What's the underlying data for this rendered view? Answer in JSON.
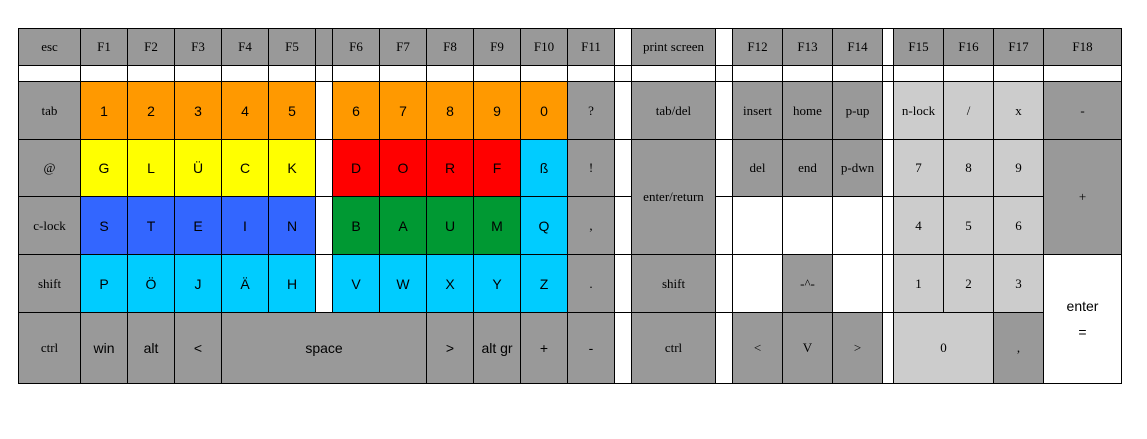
{
  "keyboard": {
    "row_fn": [
      "esc",
      "F1",
      "F2",
      "F3",
      "F4",
      "F5",
      "F6",
      "F7",
      "F8",
      "F9",
      "F10",
      "F11",
      "print screen",
      "F12",
      "F13",
      "F14",
      "F15",
      "F16",
      "F17",
      "F18"
    ],
    "row1": {
      "tab": "tab",
      "digits_left": [
        "1",
        "2",
        "3",
        "4",
        "5"
      ],
      "digits_right": [
        "6",
        "7",
        "8",
        "9",
        "0"
      ],
      "question": "?",
      "tab_del": "tab/del",
      "nav": [
        "insert",
        "home",
        "p-up"
      ],
      "numpad": [
        "n-lock",
        "/",
        "x"
      ],
      "minus": "-"
    },
    "row2": {
      "at": "@",
      "yellow": [
        "G",
        "L",
        "Ü",
        "C",
        "K"
      ],
      "red": [
        "D",
        "O",
        "R",
        "F"
      ],
      "sz": "ß",
      "excl": "!",
      "enter_return": "enter/return",
      "nav": [
        "del",
        "end",
        "p-dwn"
      ],
      "numpad": [
        "7",
        "8",
        "9"
      ],
      "plus": "+"
    },
    "row3": {
      "clock": "c-lock",
      "blue": [
        "S",
        "T",
        "E",
        "I",
        "N"
      ],
      "green": [
        "B",
        "A",
        "U",
        "M"
      ],
      "q": "Q",
      "comma": ",",
      "numpad": [
        "4",
        "5",
        "6"
      ]
    },
    "row4": {
      "shift_left": "shift",
      "cyan_left": [
        "P",
        "Ö",
        "J",
        "Ä",
        "H"
      ],
      "cyan_right": [
        "V",
        "W",
        "X",
        "Y",
        "Z"
      ],
      "period": ".",
      "shift_right": "shift",
      "caret": "-^-",
      "numpad": [
        "1",
        "2",
        "3"
      ],
      "enter_line1": "enter",
      "enter_line2": "="
    },
    "row5": {
      "ctrl_left": "ctrl",
      "win": "win",
      "alt": "alt",
      "lt": "<",
      "space": "space",
      "gt": ">",
      "alt_gr": "alt gr",
      "plus": "+",
      "minus": "-",
      "ctrl_right": "ctrl",
      "arrows": [
        "<",
        "V",
        ">"
      ],
      "zero": "0",
      "num_comma": ","
    }
  },
  "colors": {
    "gray": "#999999",
    "light_gray": "#cccccc",
    "orange": "#ff9900",
    "yellow": "#ffff00",
    "red": "#ff0000",
    "blue": "#3366ff",
    "green": "#009933",
    "cyan": "#00ccff"
  }
}
